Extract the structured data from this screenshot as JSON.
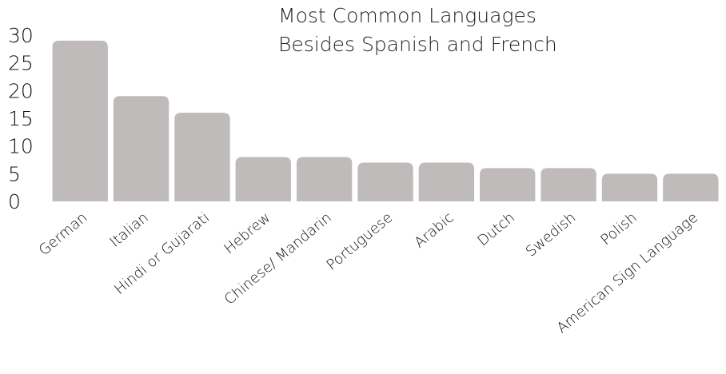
{
  "chart_data": {
    "type": "bar",
    "title_lines": [
      "Most Common Languages",
      "Besides Spanish and French"
    ],
    "xlabel": "",
    "ylabel": "",
    "categories": [
      "German",
      "Italian",
      "Hindi or Gujarati",
      "Hebrew",
      "Chinese/ Mandarin",
      "Portuguese",
      "Arabic",
      "Dutch",
      "Swedish",
      "Polish",
      "American Sign Language"
    ],
    "values": [
      29,
      19,
      16,
      8,
      8,
      7,
      7,
      6,
      6,
      5,
      5
    ],
    "ylim": [
      0,
      30
    ],
    "yticks": [
      "0",
      "5",
      "10",
      "15",
      "20",
      "25",
      "30"
    ],
    "grid": false,
    "legend": "none",
    "bar_color": "#bfbbbb"
  }
}
